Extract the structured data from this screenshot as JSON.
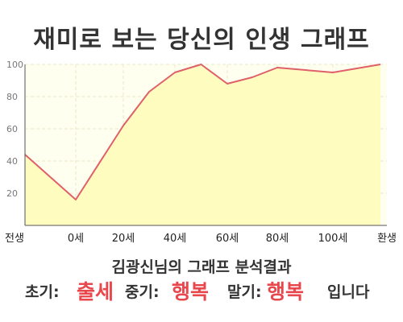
{
  "title": "재미로 보는 당신의 인생 그래프",
  "subtitle": "김광신님의 그래프 분석결과",
  "summary": {
    "early_label": "초기:",
    "early_value": "출세",
    "mid_label": "중기:",
    "mid_value": "행복",
    "late_label": "말기:",
    "late_value": "행복",
    "ending": "입니다"
  },
  "colors": {
    "line": "#e0606a",
    "fill": "#fffcc0",
    "accent": "#e8474c",
    "grid": "#e8e8c8",
    "background": "#fffff0"
  },
  "chart_data": {
    "type": "area",
    "x_tick_labels": [
      "전생",
      "0세",
      "20세",
      "40세",
      "60세",
      "80세",
      "100세",
      "환생"
    ],
    "y_ticks": [
      20,
      40,
      60,
      80,
      100
    ],
    "ylim": [
      0,
      100
    ],
    "grid": true,
    "points": [
      {
        "x": 0,
        "y": 44
      },
      {
        "x": 1,
        "y": 16
      },
      {
        "x": 2,
        "y": 62
      },
      {
        "x": 2.5,
        "y": 83
      },
      {
        "x": 3,
        "y": 95
      },
      {
        "x": 3.5,
        "y": 100
      },
      {
        "x": 4,
        "y": 88
      },
      {
        "x": 4.5,
        "y": 92
      },
      {
        "x": 5,
        "y": 98
      },
      {
        "x": 6,
        "y": 95
      },
      {
        "x": 7,
        "y": 100
      }
    ]
  }
}
